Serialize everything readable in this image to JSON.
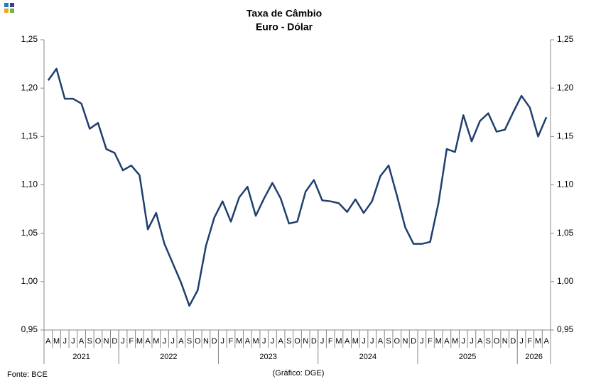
{
  "chart_data": {
    "type": "line",
    "title": "Taxa de Câmbio",
    "subtitle": "Euro - Dólar",
    "source": "Fonte: BCE",
    "credit": "(Gráfico: DGE)",
    "categories": [
      "A",
      "M",
      "J",
      "J",
      "A",
      "S",
      "O",
      "N",
      "D",
      "J",
      "F",
      "M",
      "A",
      "M",
      "J",
      "J",
      "A",
      "S",
      "O",
      "N",
      "D",
      "J",
      "F",
      "M",
      "A",
      "M",
      "J",
      "J",
      "A",
      "S",
      "O",
      "N",
      "D",
      "J",
      "F",
      "M",
      "A",
      "M",
      "J",
      "J",
      "A",
      "S",
      "O",
      "N",
      "D",
      "J",
      "F",
      "M",
      "A",
      "M",
      "J",
      "J",
      "A",
      "S",
      "O",
      "N",
      "D",
      "J",
      "F",
      "M",
      "A"
    ],
    "years": [
      "2021",
      "2022",
      "2023",
      "2024",
      "2025",
      "2026"
    ],
    "series": [
      {
        "color": "#1f3f6e",
        "values": [
          1.208,
          1.22,
          1.189,
          1.189,
          1.184,
          1.158,
          1.164,
          1.137,
          1.133,
          1.115,
          1.12,
          1.11,
          1.054,
          1.071,
          1.039,
          1.019,
          0.999,
          0.975,
          0.991,
          1.037,
          1.066,
          1.083,
          1.062,
          1.087,
          1.098,
          1.068,
          1.086,
          1.102,
          1.086,
          1.06,
          1.062,
          1.093,
          1.105,
          1.084,
          1.083,
          1.081,
          1.072,
          1.085,
          1.071,
          1.083,
          1.109,
          1.12,
          1.089,
          1.056,
          1.039,
          1.039,
          1.041,
          1.081,
          1.137,
          1.134,
          1.172,
          1.145,
          1.166,
          1.174,
          1.155,
          1.157,
          1.175,
          1.192,
          1.18,
          1.15,
          1.17
        ]
      }
    ],
    "ylim": [
      0.95,
      1.25
    ],
    "yticks": [
      {
        "value": 0.95,
        "label": "0,95"
      },
      {
        "value": 1.0,
        "label": "1,00"
      },
      {
        "value": 1.05,
        "label": "1,05"
      },
      {
        "value": 1.1,
        "label": "1,10"
      },
      {
        "value": 1.15,
        "label": "1,15"
      },
      {
        "value": 1.2,
        "label": "1,20"
      },
      {
        "value": 1.25,
        "label": "1,25"
      }
    ]
  }
}
